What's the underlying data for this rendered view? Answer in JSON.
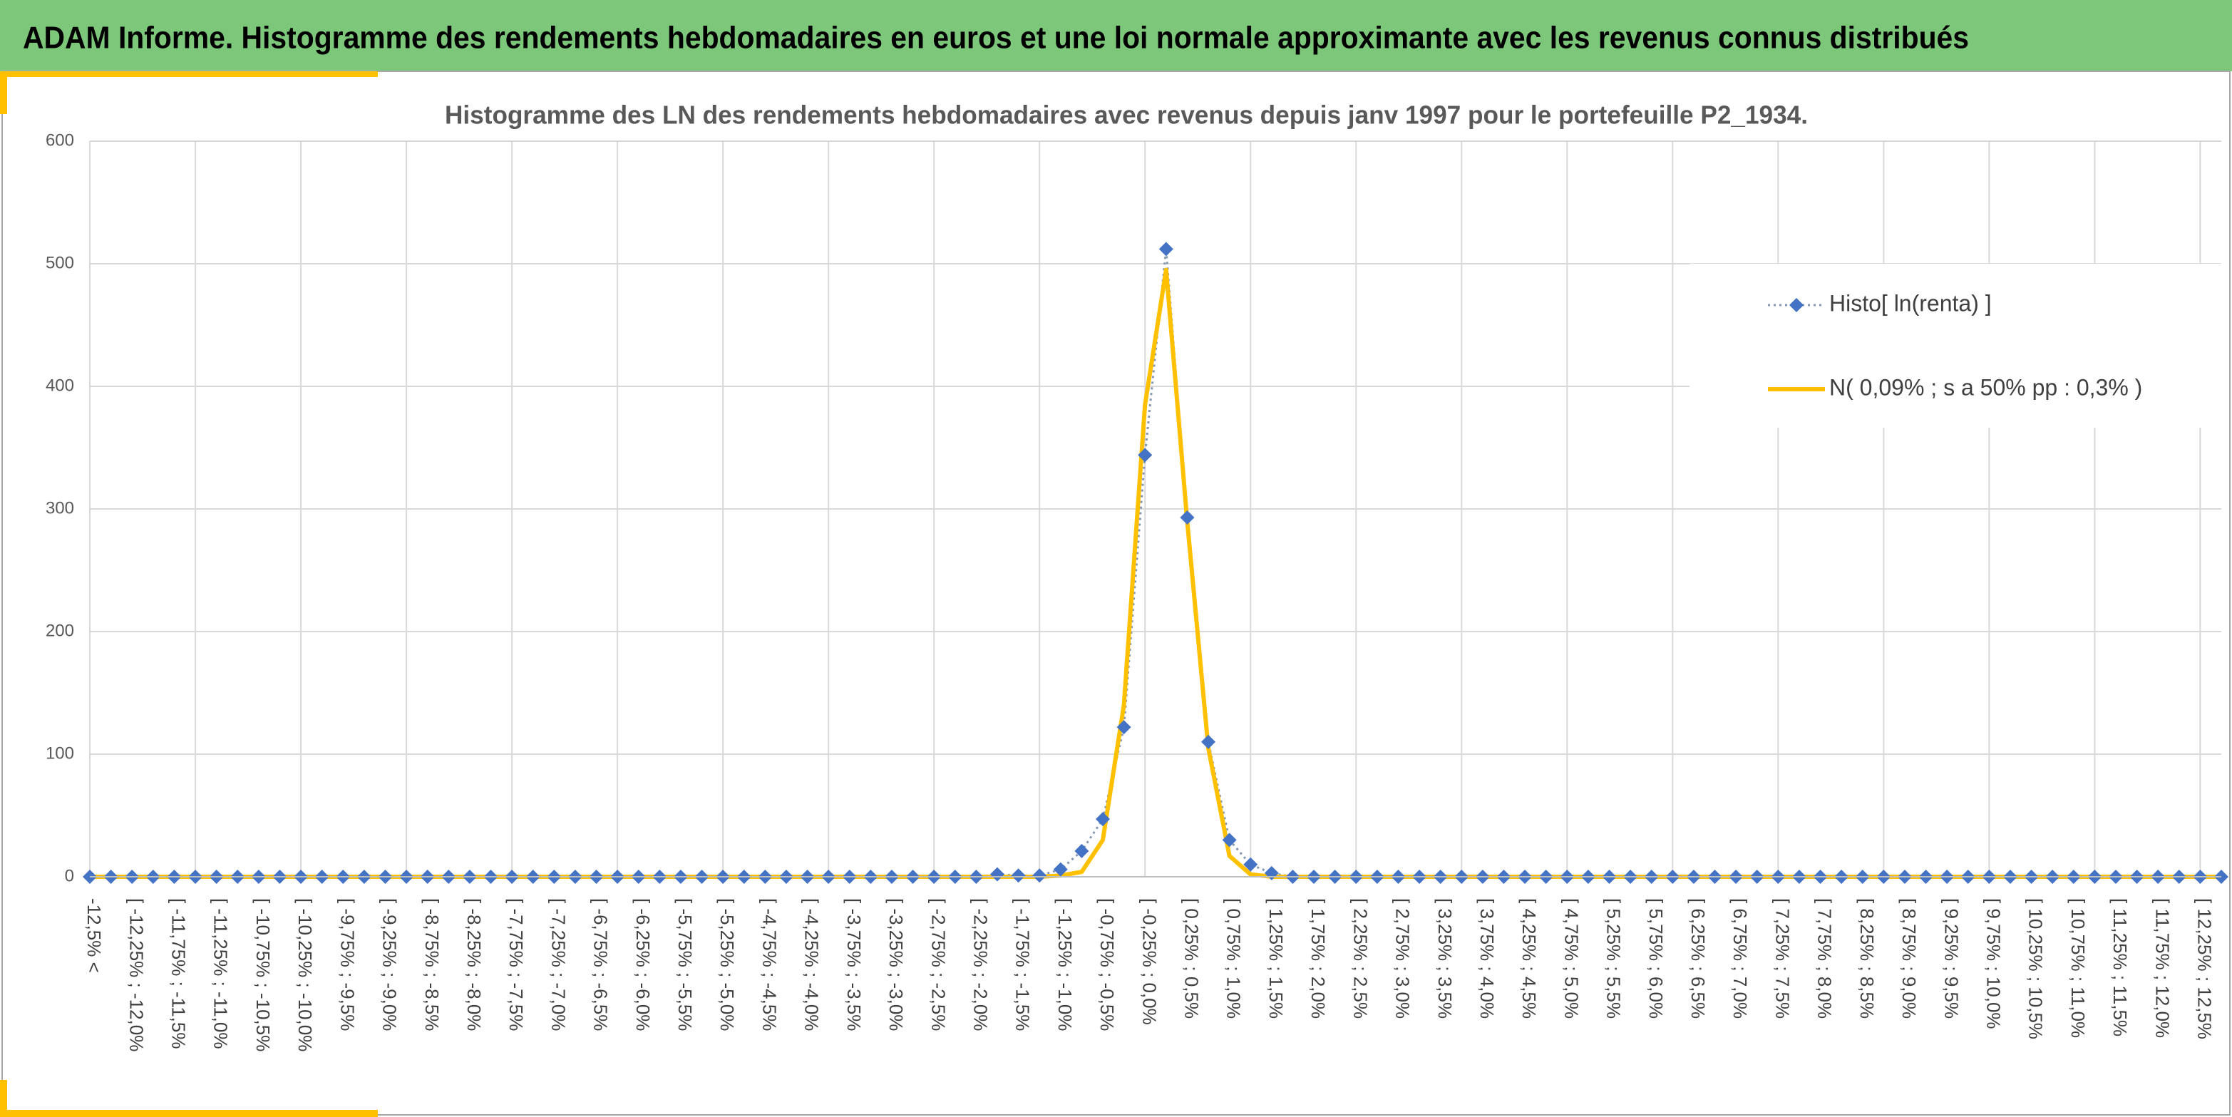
{
  "header": {
    "title": "ADAM Informe. Histogramme des rendements hebdomadaires en euros et une loi normale approximante avec les revenus connus distribués"
  },
  "chart_data": {
    "type": "line",
    "title": "Histogramme des LN des rendements hebdomadaires avec revenus depuis janv 1997 pour le portefeuille P2_1934.",
    "categories": [
      "-12,5% <",
      null,
      "[ -12,25% ; -12,0%",
      null,
      "[ -11,75% ; -11,5%",
      null,
      "[ -11,25% ; -11,0%",
      null,
      "[ -10,75% ; -10,5%",
      null,
      "[ -10,25% ; -10,0%",
      null,
      "[ -9,75% ; -9,5%",
      null,
      "[ -9,25% ; -9,0%",
      null,
      "[ -8,75% ; -8,5%",
      null,
      "[ -8,25% ; -8,0%",
      null,
      "[ -7,75% ; -7,5%",
      null,
      "[ -7,25% ; -7,0%",
      null,
      "[ -6,75% ; -6,5%",
      null,
      "[ -6,25% ; -6,0%",
      null,
      "[ -5,75% ; -5,5%",
      null,
      "[ -5,25% ; -5,0%",
      null,
      "[ -4,75% ; -4,5%",
      null,
      "[ -4,25% ; -4,0%",
      null,
      "[ -3,75% ; -3,5%",
      null,
      "[ -3,25% ; -3,0%",
      null,
      "[ -2,75% ; -2,5%",
      null,
      "[ -2,25% ; -2,0%",
      null,
      "[ -1,75% ; -1,5%",
      null,
      "[ -1,25% ; -1,0%",
      null,
      "[ -0,75% ; -0,5%",
      null,
      "[ -0,25% ; 0,0%",
      null,
      "[ 0,25% ; 0,5%",
      null,
      "[ 0,75% ; 1,0%",
      null,
      "[ 1,25% ; 1,5%",
      null,
      "[ 1,75% ; 2,0%",
      null,
      "[ 2,25% ; 2,5%",
      null,
      "[ 2,75% ; 3,0%",
      null,
      "[ 3,25% ; 3,5%",
      null,
      "[ 3,75% ; 4,0%",
      null,
      "[ 4,25% ; 4,5%",
      null,
      "[ 4,75% ; 5,0%",
      null,
      "[ 5,25% ; 5,5%",
      null,
      "[ 5,75% ; 6,0%",
      null,
      "[ 6,25% ; 6,5%",
      null,
      "[ 6,75% ; 7,0%",
      null,
      "[ 7,25% ; 7,5%",
      null,
      "[ 7,75% ; 8,0%",
      null,
      "[ 8,25% ; 8,5%",
      null,
      "[ 8,75% ; 9,0%",
      null,
      "[ 9,25% ; 9,5%",
      null,
      "[ 9,75% ; 10,0%",
      null,
      "[ 10,25% ; 10,5%",
      null,
      "[ 10,75% ; 11,0%",
      null,
      "[ 11,25% ; 11,5%",
      null,
      "[ 11,75% ; 12,0%",
      null,
      "[ 12,25% ; 12,5%",
      null
    ],
    "series": [
      {
        "name": "Histo[ ln(renta) ]",
        "color": "#4472c4",
        "line_style": "dotted",
        "marker": "diamond",
        "values": [
          0,
          0,
          0,
          0,
          0,
          0,
          0,
          0,
          0,
          0,
          0,
          0,
          0,
          0,
          0,
          0,
          0,
          0,
          0,
          0,
          0,
          0,
          0,
          0,
          0,
          0,
          0,
          0,
          0,
          0,
          0,
          0,
          0,
          0,
          0,
          0,
          0,
          0,
          0,
          0,
          0,
          0,
          0,
          2,
          1,
          1,
          6,
          21,
          47,
          122,
          344,
          512,
          293,
          110,
          30,
          10,
          3,
          0,
          0,
          0,
          0,
          0,
          0,
          0,
          0,
          0,
          0,
          0,
          0,
          0,
          0,
          0,
          0,
          0,
          0,
          0,
          0,
          0,
          0,
          0,
          0,
          0,
          0,
          0,
          0,
          0,
          0,
          0,
          0,
          0,
          0,
          0,
          0,
          0,
          0,
          0,
          0,
          0,
          0,
          0,
          0,
          0
        ]
      },
      {
        "name": "N( 0,09% ; s a 50% pp : 0,3% )",
        "color": "#ffc000",
        "line_style": "solid",
        "values": [
          0,
          0,
          0,
          0,
          0,
          0,
          0,
          0,
          0,
          0,
          0,
          0,
          0,
          0,
          0,
          0,
          0,
          0,
          0,
          0,
          0,
          0,
          0,
          0,
          0,
          0,
          0,
          0,
          0,
          0,
          0,
          0,
          0,
          0,
          0,
          0,
          0,
          0,
          0,
          0,
          0,
          0,
          0,
          0,
          0,
          0,
          1,
          4,
          30,
          140,
          385,
          495,
          290,
          105,
          17,
          2,
          0,
          0,
          0,
          0,
          0,
          0,
          0,
          0,
          0,
          0,
          0,
          0,
          0,
          0,
          0,
          0,
          0,
          0,
          0,
          0,
          0,
          0,
          0,
          0,
          0,
          0,
          0,
          0,
          0,
          0,
          0,
          0,
          0,
          0,
          0,
          0,
          0,
          0,
          0,
          0,
          0,
          0,
          0,
          0,
          0,
          0
        ]
      }
    ],
    "ylim": [
      0,
      600
    ],
    "yticks": [
      0,
      100,
      200,
      300,
      400,
      500,
      600
    ],
    "grid": true,
    "legend": "upper right"
  }
}
